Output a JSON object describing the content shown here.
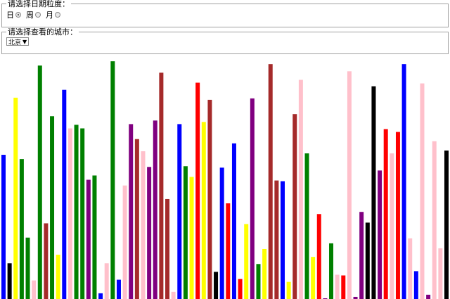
{
  "granularity": {
    "legend": "请选择日期粒度：",
    "options": [
      {
        "label": "日",
        "checked": true
      },
      {
        "label": "周",
        "checked": false
      },
      {
        "label": "月",
        "checked": false
      }
    ]
  },
  "city": {
    "legend": "请选择查看的城市：",
    "selected": "北京"
  },
  "chart_data": {
    "type": "bar",
    "ylim": [
      0,
      340
    ],
    "grid": false,
    "bars": [
      {
        "color": "#0000ff",
        "value": 202
      },
      {
        "color": "#000000",
        "value": 50
      },
      {
        "color": "#ffff00",
        "value": 282
      },
      {
        "color": "#008000",
        "value": 196
      },
      {
        "color": "#008000",
        "value": 86
      },
      {
        "color": "#ffc0cb",
        "value": 26
      },
      {
        "color": "#008000",
        "value": 327
      },
      {
        "color": "#a52a2a",
        "value": 106
      },
      {
        "color": "#008000",
        "value": 256
      },
      {
        "color": "#ffff00",
        "value": 62
      },
      {
        "color": "#0000ff",
        "value": 293
      },
      {
        "color": "#ffc0cb",
        "value": 239
      },
      {
        "color": "#008000",
        "value": 244
      },
      {
        "color": "#008000",
        "value": 239
      },
      {
        "color": "#800080",
        "value": 167
      },
      {
        "color": "#008000",
        "value": 173
      },
      {
        "color": "#0000ff",
        "value": 8
      },
      {
        "color": "#ffc0cb",
        "value": 50
      },
      {
        "color": "#008000",
        "value": 333
      },
      {
        "color": "#0000ff",
        "value": 27
      },
      {
        "color": "#ffc0cb",
        "value": 159
      },
      {
        "color": "#800080",
        "value": 245
      },
      {
        "color": "#a52a2a",
        "value": 224
      },
      {
        "color": "#ffc0cb",
        "value": 207
      },
      {
        "color": "#800080",
        "value": 185
      },
      {
        "color": "#800080",
        "value": 250
      },
      {
        "color": "#a52a2a",
        "value": 317
      },
      {
        "color": "#a52a2a",
        "value": 140
      },
      {
        "color": "#ffc0cb",
        "value": 10
      },
      {
        "color": "#0000ff",
        "value": 245
      },
      {
        "color": "#008000",
        "value": 186
      },
      {
        "color": "#ffff00",
        "value": 171
      },
      {
        "color": "#ff0000",
        "value": 303
      },
      {
        "color": "#ffff00",
        "value": 248
      },
      {
        "color": "#a52a2a",
        "value": 279
      },
      {
        "color": "#000000",
        "value": 38
      },
      {
        "color": "#0000ff",
        "value": 184
      },
      {
        "color": "#ff0000",
        "value": 134
      },
      {
        "color": "#0000ff",
        "value": 218
      },
      {
        "color": "#ff0000",
        "value": 28
      },
      {
        "color": "#ffff00",
        "value": 105
      },
      {
        "color": "#800080",
        "value": 281
      },
      {
        "color": "#008000",
        "value": 49
      },
      {
        "color": "#ffff00",
        "value": 70
      },
      {
        "color": "#a52a2a",
        "value": 329
      },
      {
        "color": "#a52a2a",
        "value": 166
      },
      {
        "color": "#0000ff",
        "value": 165
      },
      {
        "color": "#ffff00",
        "value": 24
      },
      {
        "color": "#a52a2a",
        "value": 259
      },
      {
        "color": "#ffc0cb",
        "value": 307
      },
      {
        "color": "#008000",
        "value": 204
      },
      {
        "color": "#ffff00",
        "value": 59
      },
      {
        "color": "#ff0000",
        "value": 119
      },
      {
        "color": "#800080",
        "value": 1
      },
      {
        "color": "#008000",
        "value": 78
      },
      {
        "color": "#ffc0cb",
        "value": 34
      },
      {
        "color": "#ff0000",
        "value": 33
      },
      {
        "color": "#ffc0cb",
        "value": 319
      },
      {
        "color": "#800080",
        "value": 3
      },
      {
        "color": "#800080",
        "value": 122
      },
      {
        "color": "#000000",
        "value": 107
      },
      {
        "color": "#000000",
        "value": 298
      },
      {
        "color": "#800080",
        "value": 180
      },
      {
        "color": "#ff0000",
        "value": 238
      },
      {
        "color": "#ffc0cb",
        "value": 204
      },
      {
        "color": "#ff0000",
        "value": 234
      },
      {
        "color": "#0000ff",
        "value": 329
      },
      {
        "color": "#ffc0cb",
        "value": 85
      },
      {
        "color": "#0000ff",
        "value": 39
      },
      {
        "color": "#ffc0cb",
        "value": 302
      },
      {
        "color": "#800080",
        "value": 6
      },
      {
        "color": "#ffc0cb",
        "value": 221
      },
      {
        "color": "#ffc0cb",
        "value": 71
      },
      {
        "color": "#000000",
        "value": 208
      }
    ]
  }
}
